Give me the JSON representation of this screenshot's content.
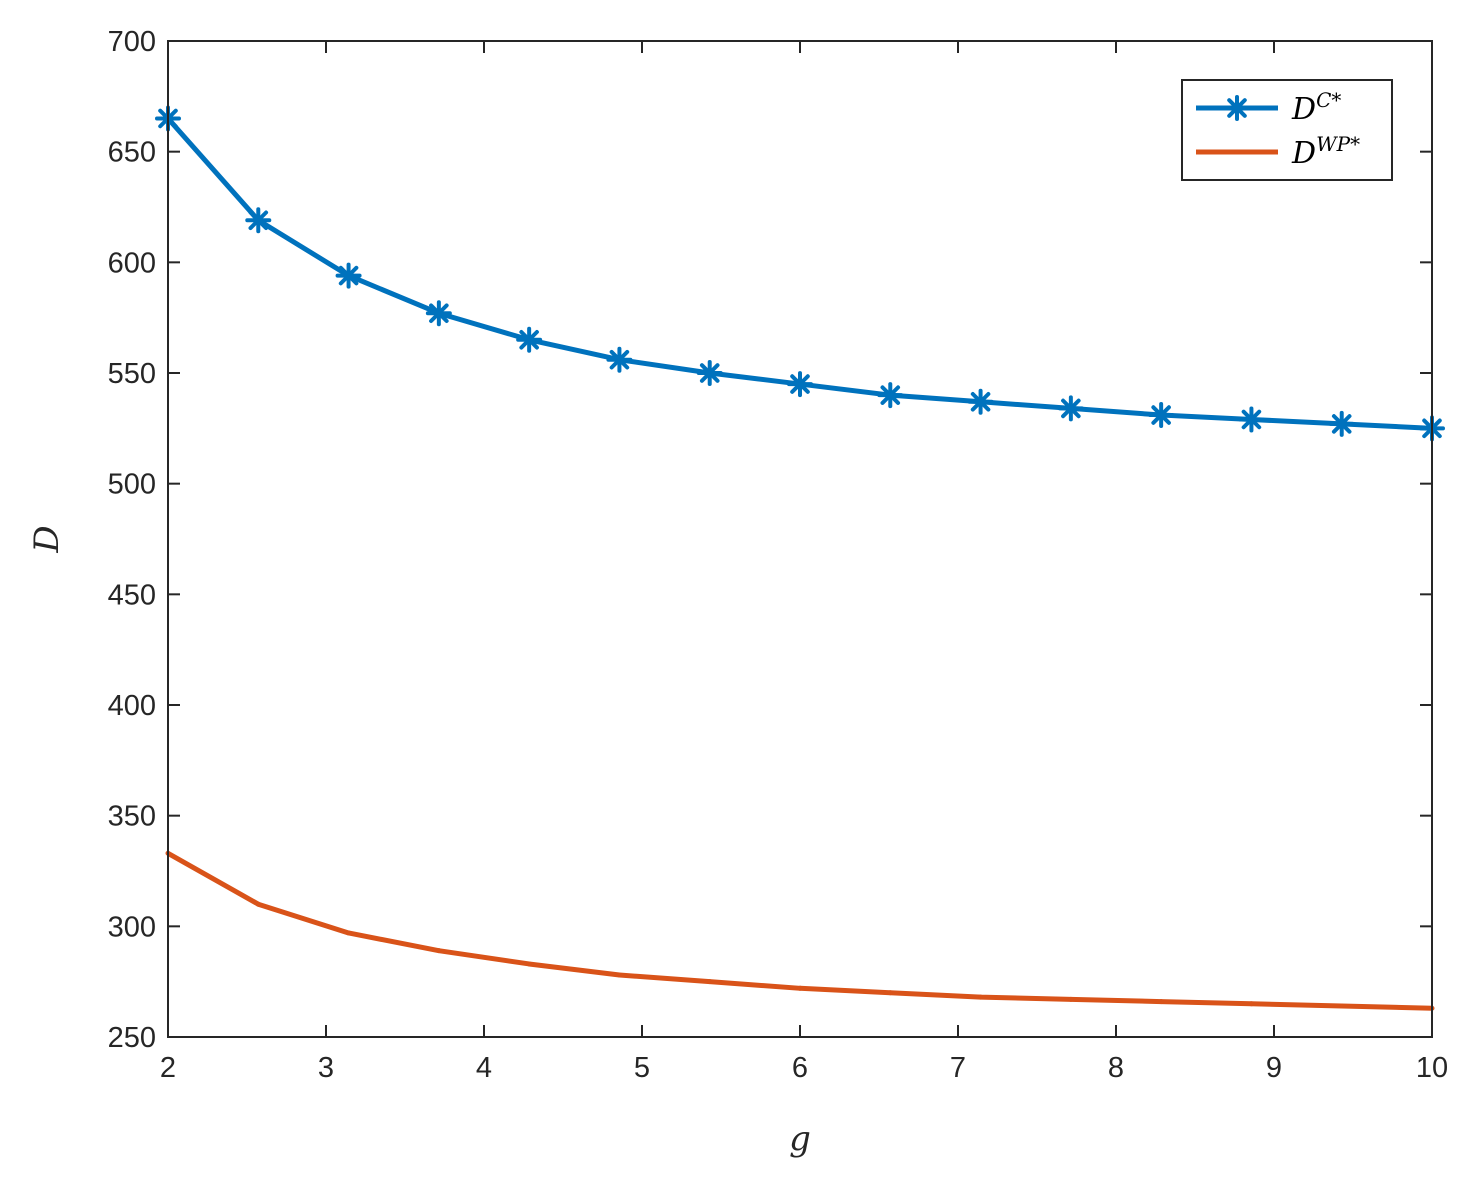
{
  "chart_data": {
    "type": "line",
    "xlabel": "g",
    "ylabel": "D",
    "xlim": [
      2,
      10
    ],
    "ylim": [
      250,
      700
    ],
    "xticks": [
      "2",
      "3",
      "4",
      "5",
      "6",
      "7",
      "8",
      "9",
      "10"
    ],
    "yticks": [
      "250",
      "300",
      "350",
      "400",
      "450",
      "500",
      "550",
      "600",
      "650",
      "700"
    ],
    "x": [
      2,
      2.5714,
      3.1429,
      3.7143,
      4.2857,
      4.8571,
      5.4286,
      6,
      6.5714,
      7.1429,
      7.7143,
      8.2857,
      8.8571,
      9.4286,
      10
    ],
    "series": [
      {
        "name": "D",
        "name_sup": "C*",
        "color": "#0072BD",
        "marker": "asterisk",
        "values": [
          665,
          619,
          594,
          577,
          565,
          556,
          550,
          545,
          540,
          537,
          534,
          531,
          529,
          527,
          525
        ]
      },
      {
        "name": "D",
        "name_sup": "WP*",
        "color": "#D95319",
        "marker": "point",
        "values": [
          333,
          310,
          297,
          289,
          283,
          278,
          275,
          272,
          270,
          268,
          267,
          266,
          265,
          264,
          263
        ]
      }
    ],
    "grid": false,
    "legend_position": "top-right"
  }
}
